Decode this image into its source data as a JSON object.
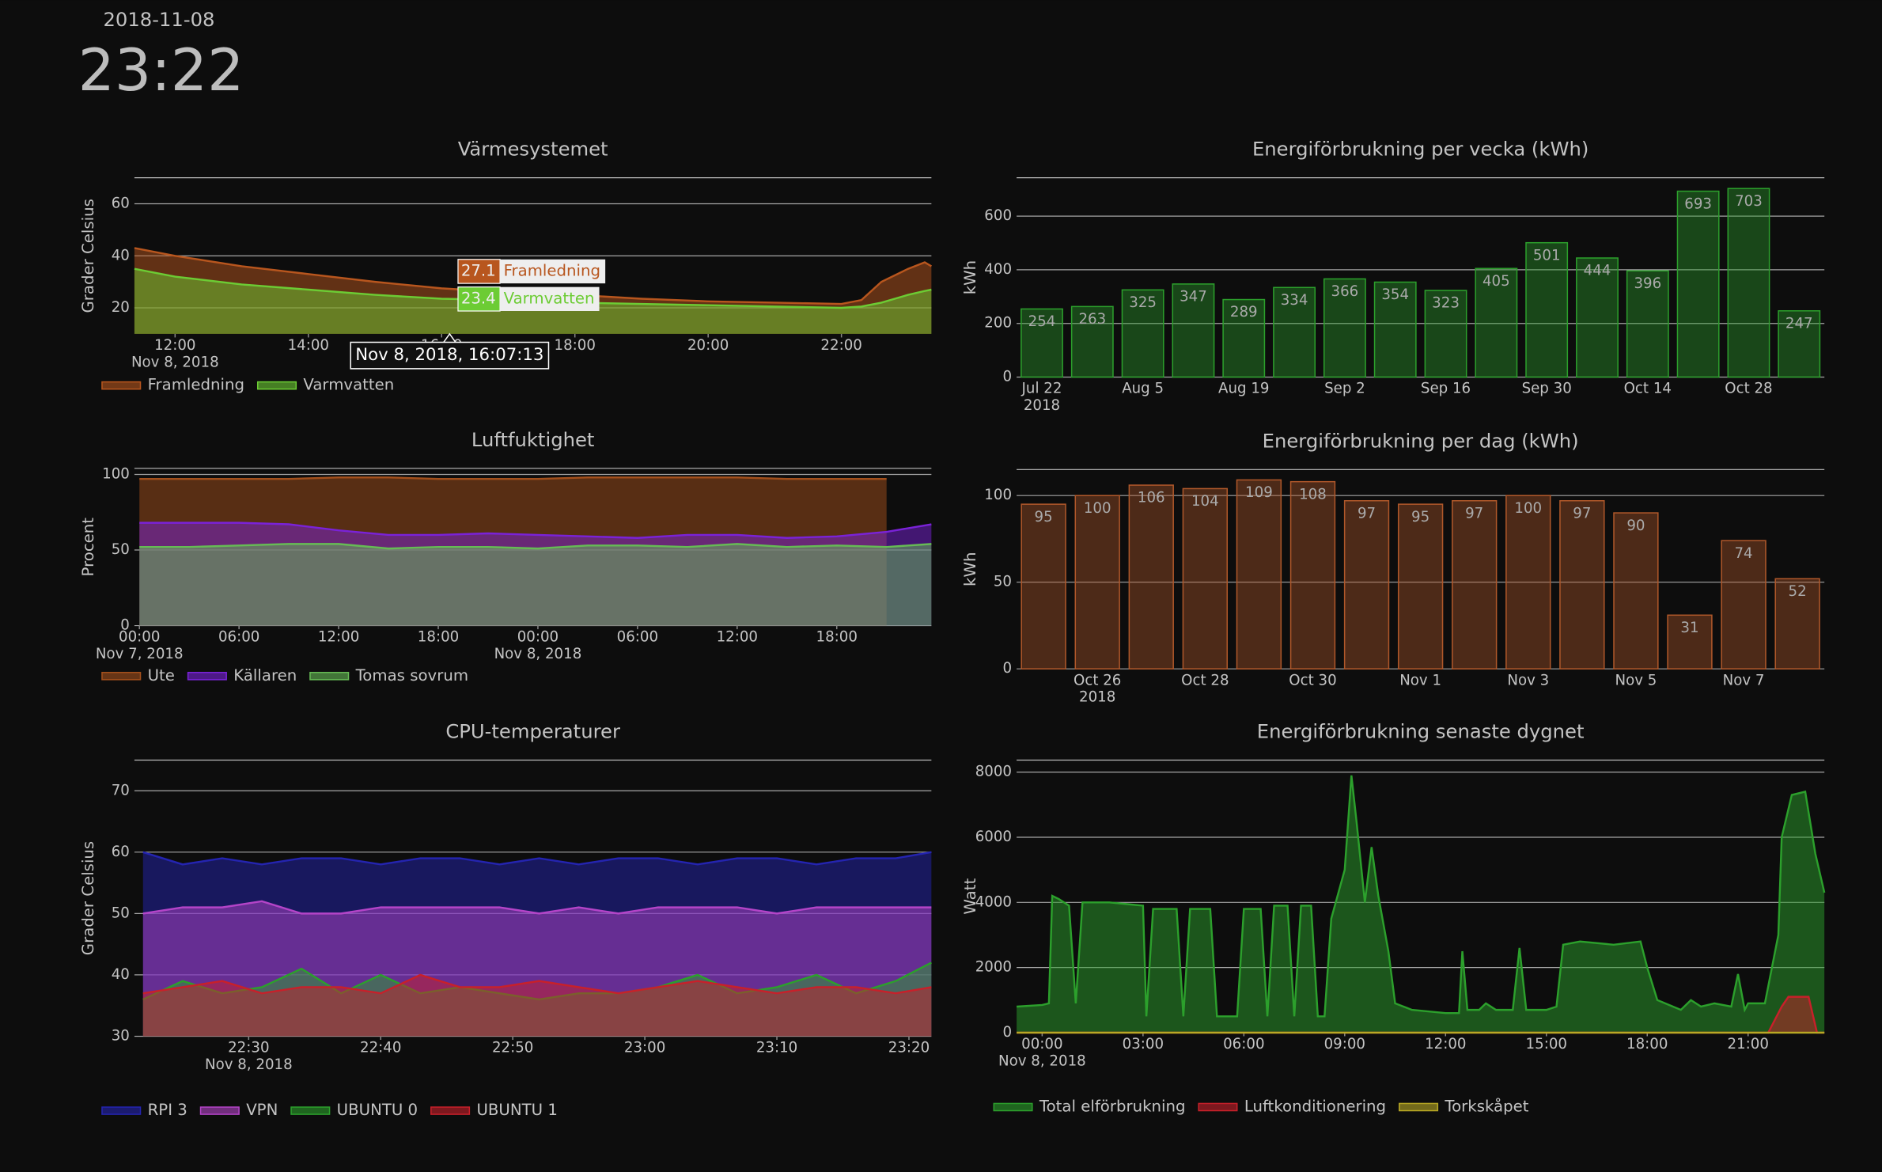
{
  "header": {
    "date": "2018-11-08",
    "time": "23:22"
  },
  "chart_data": [
    {
      "type": "area",
      "title": "Värmesystemet",
      "y_label": "Grader Celsius",
      "x": [
        11.39,
        12,
        13,
        14,
        15,
        16,
        17,
        18,
        19,
        20,
        21,
        22,
        22.3,
        22.6,
        23,
        23.25,
        23.35
      ],
      "series": [
        {
          "name": "Framledning",
          "color": "#b8561e",
          "values": [
            43,
            40,
            36,
            33,
            30,
            27.5,
            26,
            25,
            23.5,
            22.5,
            22,
            21.5,
            23,
            30,
            35,
            37.5,
            36
          ]
        },
        {
          "name": "Varmvatten",
          "color": "#6ccc34",
          "values": [
            35,
            32,
            29,
            27,
            25,
            23.5,
            23,
            22,
            21.5,
            21,
            20.5,
            20,
            20.5,
            22,
            25,
            26.5,
            27
          ]
        }
      ],
      "xlim": [
        11.39,
        23.35
      ],
      "xticks": [
        {
          "value": 12,
          "label": "12:00",
          "sublabel": "Nov 8, 2018"
        },
        {
          "value": 14,
          "label": "14:00"
        },
        {
          "value": 16,
          "label": "16:00"
        },
        {
          "value": 18,
          "label": "18:00"
        },
        {
          "value": 20,
          "label": "20:00"
        },
        {
          "value": 22,
          "label": "22:00"
        }
      ],
      "ylim": [
        10,
        70
      ],
      "yticks": [
        20,
        40,
        60
      ],
      "grid": true,
      "hover": {
        "x": 16.12,
        "label": "Nov 8, 2018, 16:07:13",
        "values": [
          27.1,
          23.4
        ]
      }
    },
    {
      "type": "area",
      "title": "Luftfuktighet",
      "y_label": "Procent",
      "x": [
        0,
        3,
        6,
        9,
        12,
        15,
        18,
        21,
        24,
        27,
        30,
        33,
        36,
        39,
        42,
        45,
        47.7
      ],
      "series": [
        {
          "name": "Ute",
          "color": "#a4501c",
          "values": [
            97,
            97,
            97,
            97,
            98,
            98,
            97,
            97,
            97,
            98,
            98,
            98,
            98,
            97,
            97,
            97,
            null
          ]
        },
        {
          "name": "Källaren",
          "color": "#7a22d8",
          "values": [
            68,
            68,
            68,
            67,
            63,
            60,
            60,
            61,
            60,
            59,
            58,
            60,
            60,
            58,
            59,
            62,
            67
          ]
        },
        {
          "name": "Tomas sovrum",
          "color": "#66bb55",
          "values": [
            52,
            52,
            53,
            54,
            54,
            51,
            52,
            52,
            51,
            53,
            53,
            52,
            54,
            52,
            53,
            52,
            54
          ]
        }
      ],
      "xlim": [
        -0.3,
        47.7
      ],
      "xticks": [
        {
          "value": 0,
          "label": "00:00",
          "sublabel": "Nov 7, 2018"
        },
        {
          "value": 6,
          "label": "06:00"
        },
        {
          "value": 12,
          "label": "12:00"
        },
        {
          "value": 18,
          "label": "18:00"
        },
        {
          "value": 24,
          "label": "00:00",
          "sublabel": "Nov 8, 2018"
        },
        {
          "value": 30,
          "label": "06:00"
        },
        {
          "value": 36,
          "label": "12:00"
        },
        {
          "value": 42,
          "label": "18:00"
        }
      ],
      "ylim": [
        0,
        104
      ],
      "yticks": [
        0,
        50,
        100
      ],
      "grid": true
    },
    {
      "type": "area",
      "title": "CPU-temperaturer",
      "y_label": "Grader Celsius",
      "x": [
        22,
        25,
        28,
        31,
        34,
        37,
        40,
        43,
        46,
        49,
        52,
        55,
        58,
        61,
        64,
        67,
        70,
        73,
        76,
        79,
        81.7
      ],
      "series": [
        {
          "name": "RPI 3",
          "color": "#2424b0",
          "values": [
            60,
            58,
            59,
            58,
            59,
            59,
            58,
            59,
            59,
            58,
            59,
            58,
            59,
            59,
            58,
            59,
            59,
            58,
            59,
            59,
            60
          ]
        },
        {
          "name": "VPN",
          "color": "#b444c8",
          "values": [
            50,
            51,
            51,
            52,
            50,
            50,
            51,
            51,
            51,
            51,
            50,
            51,
            50,
            51,
            51,
            51,
            50,
            51,
            51,
            51,
            51
          ]
        },
        {
          "name": "UBUNTU 0",
          "color": "#2ca02c",
          "values": [
            36,
            39,
            37,
            38,
            41,
            37,
            40,
            37,
            38,
            37,
            36,
            37,
            37,
            38,
            40,
            37,
            38,
            40,
            37,
            39,
            42
          ]
        },
        {
          "name": "UBUNTU 1",
          "color": "#c8202a",
          "values": [
            37,
            38,
            39,
            37,
            38,
            38,
            37,
            40,
            38,
            38,
            39,
            38,
            37,
            38,
            39,
            38,
            37,
            38,
            38,
            37,
            38
          ]
        }
      ],
      "xlim": [
        21.35,
        81.7
      ],
      "xticks": [
        {
          "value": 30,
          "label": "22:30",
          "sublabel": "Nov 8, 2018"
        },
        {
          "value": 40,
          "label": "22:40"
        },
        {
          "value": 50,
          "label": "22:50"
        },
        {
          "value": 60,
          "label": "23:00"
        },
        {
          "value": 70,
          "label": "23:10"
        },
        {
          "value": 80,
          "label": "23:20"
        }
      ],
      "ylim": [
        30,
        75
      ],
      "yticks": [
        30,
        40,
        50,
        60,
        70
      ],
      "grid": true
    },
    {
      "type": "bar",
      "title": "Energiförbrukning per vecka (kWh)",
      "y_label": "kWh",
      "color": "#2ca02c",
      "categories": [
        "Jul 22",
        null,
        "Aug 5",
        null,
        "Aug 19",
        null,
        "Sep 2",
        null,
        "Sep 16",
        null,
        "Sep 30",
        null,
        "Oct 14",
        null,
        "Oct 28",
        null
      ],
      "category_sublabels": [
        "2018",
        null,
        null,
        null,
        null,
        null,
        null,
        null,
        null,
        null,
        null,
        null,
        null,
        null,
        null,
        null
      ],
      "values": [
        254,
        263,
        325,
        347,
        289,
        334,
        366,
        354,
        323,
        405,
        501,
        444,
        396,
        693,
        703,
        247
      ],
      "ylim": [
        0,
        743
      ],
      "yticks": [
        0,
        200,
        400,
        600
      ],
      "grid": true
    },
    {
      "type": "bar",
      "title": "Energiförbrukning per dag (kWh)",
      "y_label": "kWh",
      "color": "#b0582a",
      "categories": [
        null,
        "Oct 26",
        null,
        "Oct 28",
        null,
        "Oct 30",
        null,
        "Nov 1",
        null,
        "Nov 3",
        null,
        "Nov 5",
        null,
        "Nov 7",
        null
      ],
      "category_sublabels": [
        null,
        "2018",
        null,
        null,
        null,
        null,
        null,
        null,
        null,
        null,
        null,
        null,
        null,
        null,
        null
      ],
      "values": [
        95,
        100,
        106,
        104,
        109,
        108,
        97,
        95,
        97,
        100,
        97,
        90,
        31,
        74,
        52
      ],
      "ylim": [
        0,
        115
      ],
      "yticks": [
        0,
        50,
        100
      ],
      "grid": true
    },
    {
      "type": "area",
      "title": "Energiförbrukning senaste dygnet",
      "y_label": "Watt",
      "series": [
        {
          "name": "Total elförbrukning",
          "color": "#2ca02c",
          "x": [
            -0.76,
            0,
            0.2,
            0.3,
            0.5,
            0.8,
            1,
            1.2,
            2,
            2.5,
            3,
            3.1,
            3.3,
            4,
            4.2,
            4.4,
            5,
            5.2,
            5.8,
            6,
            6.5,
            6.7,
            6.9,
            7.3,
            7.5,
            7.7,
            8,
            8.2,
            8.4,
            8.6,
            9,
            9.2,
            9.35,
            9.6,
            9.8,
            10,
            10.3,
            10.5,
            11,
            12,
            12.4,
            12.5,
            12.65,
            13,
            13.2,
            13.5,
            14,
            14.2,
            14.4,
            15,
            15.3,
            15.5,
            16,
            17,
            17.8,
            18,
            18.3,
            19,
            19.3,
            19.6,
            20,
            20.5,
            20.7,
            20.9,
            21,
            21.5,
            21.9,
            22,
            22.3,
            22.7,
            23,
            23.27
          ],
          "values": [
            800,
            850,
            900,
            4200,
            4100,
            3900,
            900,
            4000,
            4000,
            3950,
            3900,
            500,
            3800,
            3800,
            500,
            3800,
            3800,
            500,
            500,
            3800,
            3800,
            500,
            3900,
            3900,
            500,
            3900,
            3900,
            500,
            500,
            3500,
            5000,
            7900,
            6500,
            4000,
            5700,
            4200,
            2500,
            900,
            700,
            600,
            600,
            2500,
            700,
            700,
            900,
            700,
            700,
            2600,
            700,
            700,
            800,
            2700,
            2800,
            2700,
            2800,
            2000,
            1000,
            700,
            1000,
            800,
            900,
            800,
            1800,
            700,
            900,
            900,
            3000,
            6000,
            7300,
            7400,
            5500,
            4300
          ]
        },
        {
          "name": "Luftkonditionering",
          "color": "#c8202a",
          "x": [
            -0.76,
            21.6,
            22,
            22.2,
            22.8,
            23.05,
            23.27
          ],
          "values": [
            0,
            0,
            800,
            1100,
            1100,
            0,
            0
          ]
        },
        {
          "name": "Torkskåpet",
          "color": "#b8a824",
          "x": [
            -0.76,
            23.27
          ],
          "values": [
            0,
            0
          ]
        }
      ],
      "xlim": [
        -0.76,
        23.27
      ],
      "xticks": [
        {
          "value": 0,
          "label": "00:00",
          "sublabel": "Nov 8, 2018"
        },
        {
          "value": 3,
          "label": "03:00"
        },
        {
          "value": 6,
          "label": "06:00"
        },
        {
          "value": 9,
          "label": "09:00"
        },
        {
          "value": 12,
          "label": "12:00"
        },
        {
          "value": 15,
          "label": "15:00"
        },
        {
          "value": 18,
          "label": "18:00"
        },
        {
          "value": 21,
          "label": "21:00"
        }
      ],
      "ylim": [
        0,
        8370
      ],
      "yticks": [
        0,
        2000,
        4000,
        6000,
        8000
      ],
      "grid": true
    }
  ]
}
